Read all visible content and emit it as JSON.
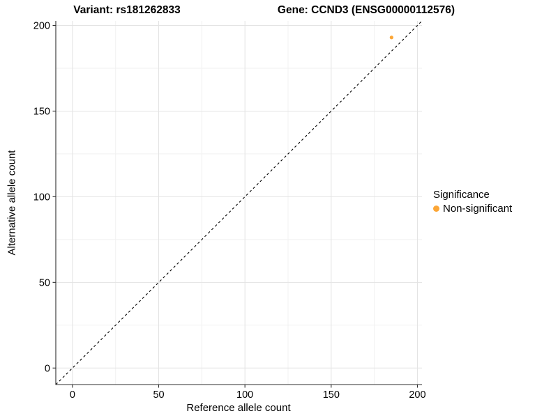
{
  "titles": {
    "left": "Variant: rs181262833",
    "right": "Gene: CCND3 (ENSG00000112576)"
  },
  "chart_data": {
    "type": "scatter",
    "title_left": "Variant: rs181262833",
    "title_right": "Gene: CCND3 (ENSG00000112576)",
    "xlabel": "Reference allele count",
    "ylabel": "Alternative allele count",
    "xticks": [
      0,
      50,
      100,
      150,
      200
    ],
    "yticks": [
      0,
      50,
      100,
      150,
      200
    ],
    "xminor": [
      25,
      75,
      125,
      175
    ],
    "yminor": [
      25,
      75,
      125,
      175
    ],
    "xlim": [
      -9.65,
      202.65
    ],
    "ylim": [
      -9.65,
      202.65
    ],
    "grid": "major+minor",
    "points": [
      {
        "x": 185,
        "y": 193,
        "series": "Non-significant"
      }
    ],
    "reference_line": {
      "type": "identity",
      "slope": 1,
      "intercept": 0,
      "style": "dashed",
      "color": "#000000"
    },
    "legend": {
      "title": "Significance",
      "position": "right",
      "entries": [
        {
          "label": "Non-significant",
          "color": "#FCA636"
        }
      ]
    },
    "colors": {
      "point": "#FCA636",
      "grid_major": "#e3e3e3",
      "grid_minor": "#f1f1f1",
      "axis_line": "#2f2f2f",
      "tick_text": "#000000"
    }
  }
}
